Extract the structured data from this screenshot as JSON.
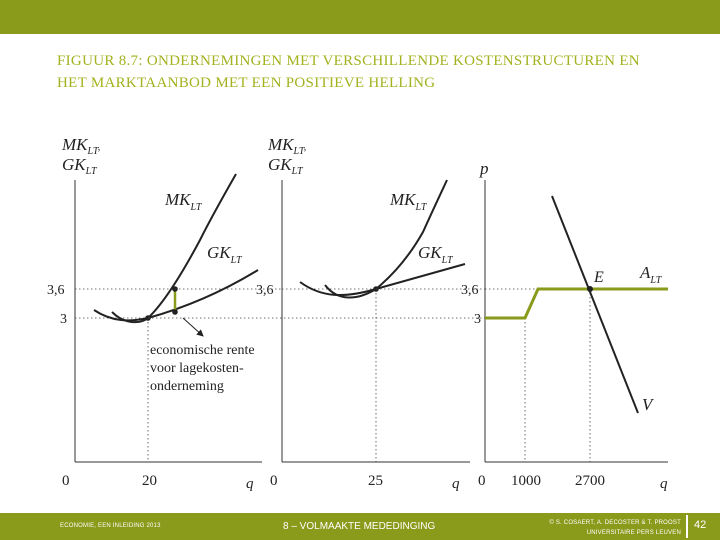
{
  "header": {
    "brand_color": "#8a9a1b"
  },
  "title": {
    "line1": "Figuur 8.7: Ondernemingen met verschillende kostenstructuren en",
    "line2": "het marktaanbod met een positieve helling",
    "color": "#a3b21e"
  },
  "diagram": {
    "highlight_color": "#8a9a1b",
    "panel1": {
      "y_label_top": "MK",
      "y_label_top_sub": "LT",
      "y_label_top_suffix": ",",
      "y_label_bottom": "GK",
      "y_label_bottom_sub": "LT",
      "curve_mk": "MK",
      "curve_mk_sub": "LT",
      "curve_gk": "GK",
      "curve_gk_sub": "LT",
      "tick_36": "3,6",
      "tick_3": "3",
      "x_origin": "0",
      "x_tick": "20",
      "x_label": "q",
      "annotation": [
        "economische rente",
        "voor lagekosten-",
        "onderneming"
      ]
    },
    "panel2": {
      "y_label_top": "MK",
      "y_label_top_sub": "LT",
      "y_label_top_suffix": ",",
      "y_label_bottom": "GK",
      "y_label_bottom_sub": "LT",
      "curve_mk": "MK",
      "curve_mk_sub": "LT",
      "curve_gk": "GK",
      "curve_gk_sub": "LT",
      "tick_36": "3,6",
      "x_origin": "0",
      "x_tick": "25",
      "x_label": "q"
    },
    "panel3": {
      "y_label": "p",
      "tick_36": "3,6",
      "tick_3": "3",
      "point_e": "E",
      "supply_label": "A",
      "supply_label_sub": "LT",
      "demand_label": "V",
      "x_origin": "0",
      "x_tick1": "1000",
      "x_tick2": "2700",
      "x_label": "q"
    }
  },
  "footer": {
    "left": "Economie, een inleiding 2013",
    "center": "8 – Volmaakte mededinging",
    "right_line1": "© S. Cosaert, A. Decoster & T. Proost",
    "right_line2": "Universitaire Pers Leuven",
    "page": "42"
  }
}
